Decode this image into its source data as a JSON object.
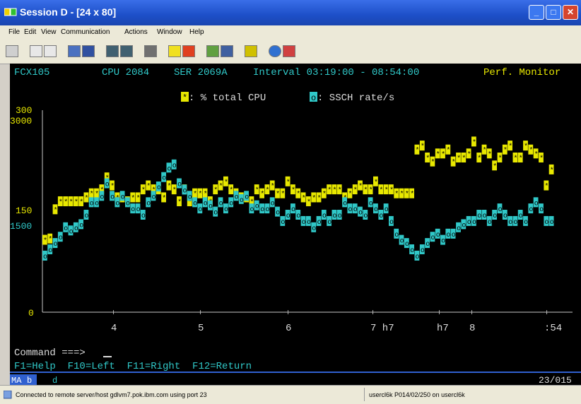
{
  "window": {
    "title": "Session D - [24 x 80]"
  },
  "menu": [
    "File",
    "Edit",
    "View",
    "Communication",
    "Actions",
    "Window",
    "Help"
  ],
  "header": {
    "left": "FCX105",
    "cpu": "CPU 2084",
    "ser": "SER 2069A",
    "interval": "Interval 03:19:00 - 08:54:00",
    "right": "Perf. Monitor"
  },
  "legend": {
    "cpu_marker": "*",
    "cpu_label": ": % total CPU",
    "ssch_marker": "o",
    "ssch_label": ": SSCH rate/s"
  },
  "colors": {
    "cpu": "#e8e800",
    "ssch": "#30c8c8",
    "axis": "#c8c8c8",
    "screen_bg": "#000000",
    "title_bar": "#1d4fc8"
  },
  "chart_data": {
    "type": "line",
    "y_left_ticks": [
      "300",
      "150",
      "0"
    ],
    "y_right_ticks": [
      "3000",
      "1500"
    ],
    "x_tick_labels": [
      "4",
      "5",
      "6",
      "7 h7",
      "h7",
      "8",
      ":54"
    ],
    "cpu_series": [
      109,
      111,
      155,
      167,
      167,
      167,
      167,
      167,
      173,
      179,
      179,
      185,
      203,
      191,
      173,
      173,
      167,
      173,
      173,
      185,
      191,
      185,
      185,
      173,
      191,
      185,
      167,
      185,
      167,
      179,
      179,
      179,
      167,
      185,
      191,
      197,
      185,
      179,
      173,
      173,
      167,
      185,
      179,
      185,
      191,
      179,
      179,
      197,
      185,
      179,
      173,
      167,
      173,
      173,
      179,
      185,
      185,
      185,
      173,
      179,
      185,
      191,
      185,
      185,
      197,
      185,
      185,
      185,
      179,
      179,
      179,
      179,
      245,
      251,
      233,
      227,
      239,
      239,
      245,
      227,
      233,
      233,
      239,
      257,
      233,
      245,
      239,
      221,
      233,
      245,
      251,
      233,
      233,
      251,
      245,
      239,
      233,
      191,
      215
    ],
    "ssch_series": [
      900,
      1000,
      1100,
      1200,
      1350,
      1300,
      1350,
      1400,
      1550,
      1750,
      1750,
      1850,
      2050,
      1850,
      1750,
      1850,
      1750,
      1650,
      1650,
      1550,
      1750,
      1850,
      2000,
      2150,
      2300,
      2350,
      2050,
      1950,
      1850,
      1750,
      1650,
      1750,
      1700,
      1600,
      1750,
      1650,
      1750,
      1850,
      1800,
      1850,
      1650,
      1700,
      1650,
      1650,
      1750,
      1600,
      1450,
      1550,
      1650,
      1550,
      1450,
      1450,
      1350,
      1450,
      1550,
      1450,
      1550,
      1550,
      1750,
      1650,
      1650,
      1600,
      1550,
      1750,
      1650,
      1550,
      1650,
      1450,
      1250,
      1150,
      1100,
      1000,
      900,
      1000,
      1100,
      1200,
      1250,
      1150,
      1250,
      1250,
      1350,
      1400,
      1450,
      1450,
      1550,
      1550,
      1450,
      1550,
      1650,
      1550,
      1450,
      1450,
      1550,
      1450,
      1650,
      1750,
      1650,
      1450,
      1450
    ]
  },
  "command": {
    "prompt": "Command ===>",
    "value": ""
  },
  "fkeys": "F1=Help  F10=Left  F11=Right  F12=Return",
  "oia": {
    "left": "MA",
    "b": "b",
    "d": "d",
    "right": "23/015"
  },
  "status": {
    "left": "Connected to remote server/host gdlvm7.pok.ibm.com using port 23",
    "right": "usercl6k P014/02/250 on usercl6k"
  }
}
